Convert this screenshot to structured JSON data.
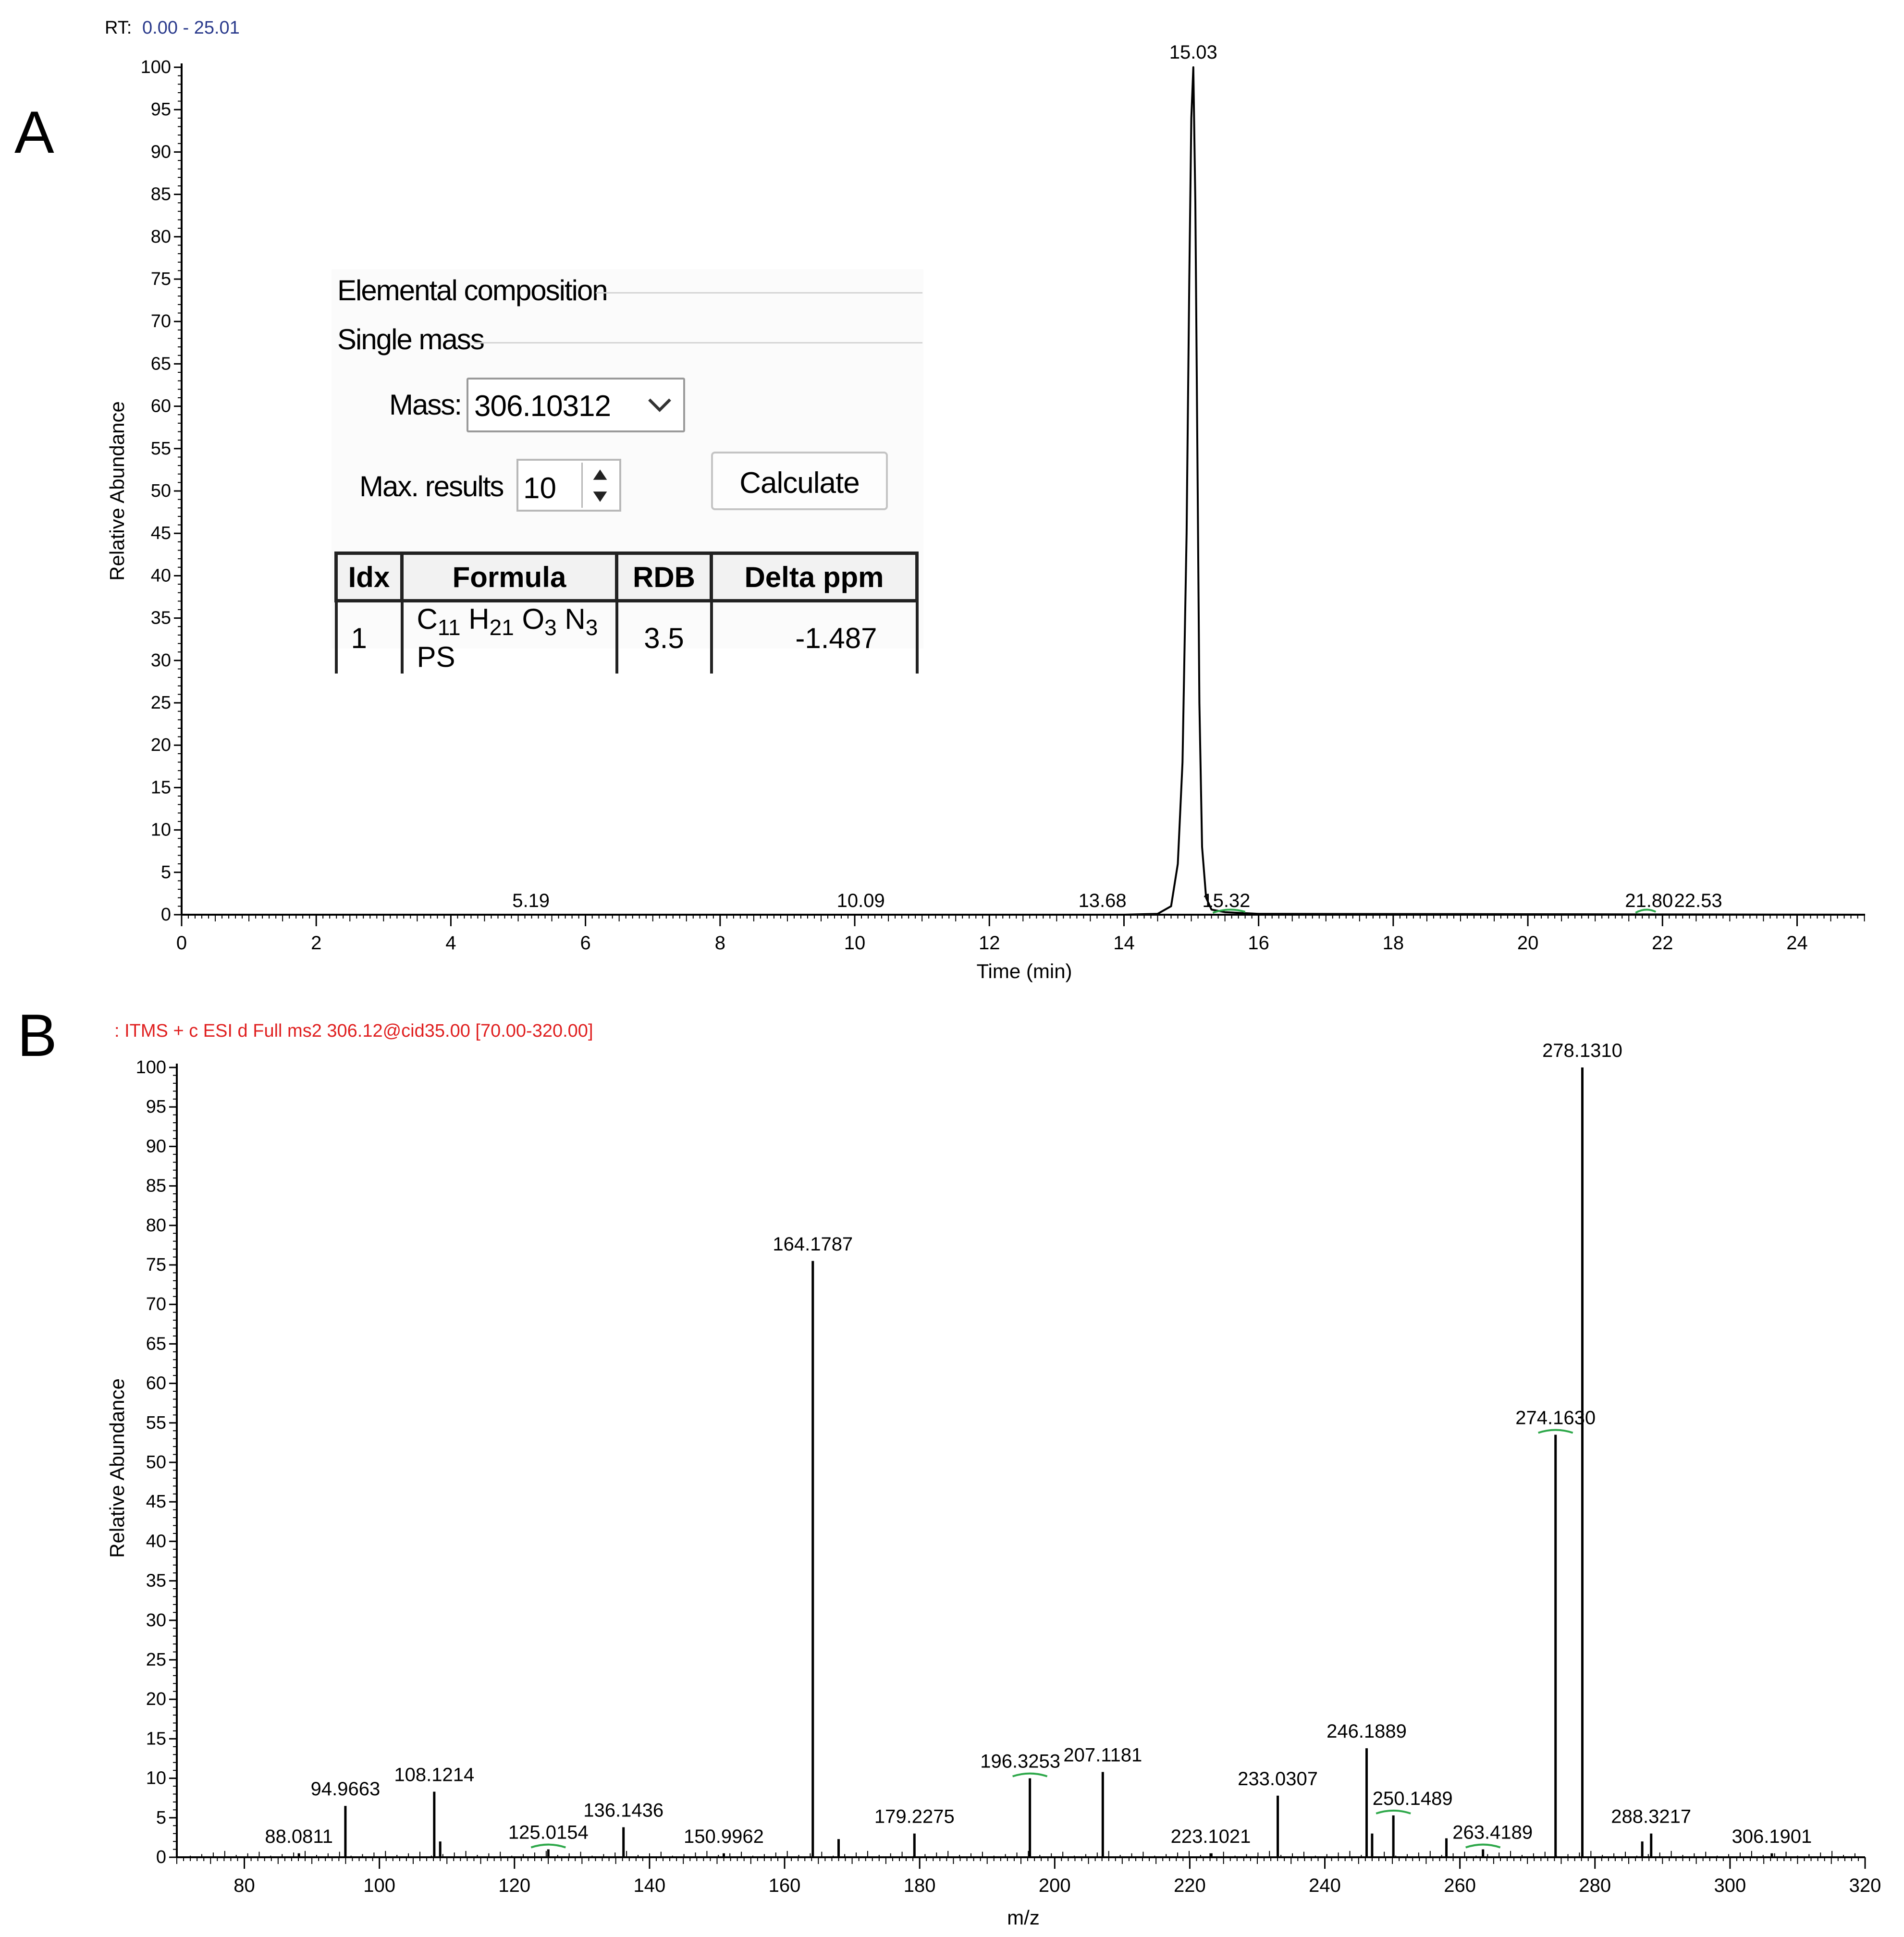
{
  "panels": {
    "a": "A",
    "b": "B"
  },
  "inset": {
    "section_elemental": "Elemental composition",
    "section_single_mass": "Single mass",
    "mass_label": "Mass:",
    "mass_value": "306.10312",
    "max_results_label": "Max. results",
    "max_results_value": "10",
    "calculate_label": "Calculate",
    "table": {
      "headers": [
        "Idx",
        "Formula",
        "RDB",
        "Delta  ppm"
      ],
      "row": {
        "idx": "1",
        "formula_parts": [
          "C",
          "11",
          " H",
          "21",
          " O",
          "3",
          " N",
          "3",
          " PS"
        ],
        "rdb": "3.5",
        "delta": "-1.487"
      }
    }
  },
  "chart_data": [
    {
      "type": "line",
      "header": "RT: 0.00 - 25.01",
      "xlabel": "Time (min)",
      "ylabel": "Relative Abundance",
      "xlim": [
        0,
        25.01
      ],
      "ylim": [
        0,
        100
      ],
      "xticks": [
        0,
        2,
        4,
        6,
        8,
        10,
        12,
        14,
        16,
        18,
        20,
        22,
        24
      ],
      "yticks": [
        0,
        5,
        10,
        15,
        20,
        25,
        30,
        35,
        40,
        45,
        50,
        55,
        60,
        65,
        70,
        75,
        80,
        85,
        90,
        95,
        100
      ],
      "x": [
        0,
        14.0,
        14.5,
        14.7,
        14.8,
        14.87,
        14.93,
        14.97,
        15.0,
        15.03,
        15.06,
        15.09,
        15.12,
        15.16,
        15.22,
        15.3,
        15.5,
        16.0,
        25.01
      ],
      "y": [
        0,
        0,
        0.1,
        1.0,
        6.0,
        18.0,
        45.0,
        75.0,
        94.0,
        100.0,
        84.0,
        55.0,
        25.0,
        8.0,
        2.0,
        0.6,
        0.3,
        0.1,
        0
      ],
      "peak_labels": [
        {
          "x": 5.19,
          "label": "5.19"
        },
        {
          "x": 10.09,
          "label": "10.09"
        },
        {
          "x": 13.68,
          "label": "13.68"
        },
        {
          "x": 15.03,
          "label": "15.03",
          "y": 100
        },
        {
          "x": 15.32,
          "label": "15.32"
        },
        {
          "x": 21.8,
          "label": "21.80"
        },
        {
          "x": 22.53,
          "label": "22.53"
        }
      ]
    },
    {
      "type": "bar",
      "header": ": ITMS + c ESI d Full ms2 306.12@cid35.00 [70.00-320.00]",
      "xlabel": "m/z",
      "ylabel": "Relative Abundance",
      "xlim": [
        70,
        320
      ],
      "ylim": [
        0,
        100
      ],
      "xticks": [
        80,
        100,
        120,
        140,
        160,
        180,
        200,
        220,
        240,
        260,
        280,
        300,
        320
      ],
      "yticks": [
        0,
        5,
        10,
        15,
        20,
        25,
        30,
        35,
        40,
        45,
        50,
        55,
        60,
        65,
        70,
        75,
        80,
        85,
        90,
        95,
        100
      ],
      "peaks": [
        {
          "mz": 88.0811,
          "abundance": 0.5,
          "label": "88.0811"
        },
        {
          "mz": 94.9663,
          "abundance": 6.5,
          "label": "94.9663"
        },
        {
          "mz": 108.1214,
          "abundance": 8.3,
          "label": "108.1214"
        },
        {
          "mz": 109.0,
          "abundance": 2.0
        },
        {
          "mz": 125.0154,
          "abundance": 1.0,
          "label": "125.0154"
        },
        {
          "mz": 136.1436,
          "abundance": 3.8,
          "label": "136.1436"
        },
        {
          "mz": 150.9962,
          "abundance": 0.5,
          "label": "150.9962"
        },
        {
          "mz": 164.1787,
          "abundance": 75.5,
          "label": "164.1787"
        },
        {
          "mz": 168.0,
          "abundance": 2.3
        },
        {
          "mz": 179.2275,
          "abundance": 3.0,
          "label": "179.2275"
        },
        {
          "mz": 196.3253,
          "abundance": 10.0,
          "label": "196.3253"
        },
        {
          "mz": 207.1181,
          "abundance": 10.8,
          "label": "207.1181"
        },
        {
          "mz": 223.1021,
          "abundance": 0.5,
          "label": "223.1021"
        },
        {
          "mz": 233.0307,
          "abundance": 7.8,
          "label": "233.0307"
        },
        {
          "mz": 246.1889,
          "abundance": 13.8,
          "label": "246.1889"
        },
        {
          "mz": 247.0,
          "abundance": 3.0
        },
        {
          "mz": 250.1489,
          "abundance": 5.3,
          "label": "250.1489"
        },
        {
          "mz": 258.0,
          "abundance": 2.4
        },
        {
          "mz": 263.4189,
          "abundance": 1.0,
          "label": "263.4189"
        },
        {
          "mz": 274.163,
          "abundance": 53.5,
          "label": "274.1630"
        },
        {
          "mz": 278.131,
          "abundance": 100.0,
          "label": "278.1310"
        },
        {
          "mz": 288.3217,
          "abundance": 3.0,
          "label": "288.3217"
        },
        {
          "mz": 287.0,
          "abundance": 2.0
        },
        {
          "mz": 306.1901,
          "abundance": 0.5,
          "label": "306.1901"
        }
      ]
    }
  ],
  "colors": {
    "axis": "#000000",
    "header_a": "#2a3a8c",
    "header_b": "#e02020",
    "accent_marker": "#2ea84a",
    "trace": "#000000"
  }
}
